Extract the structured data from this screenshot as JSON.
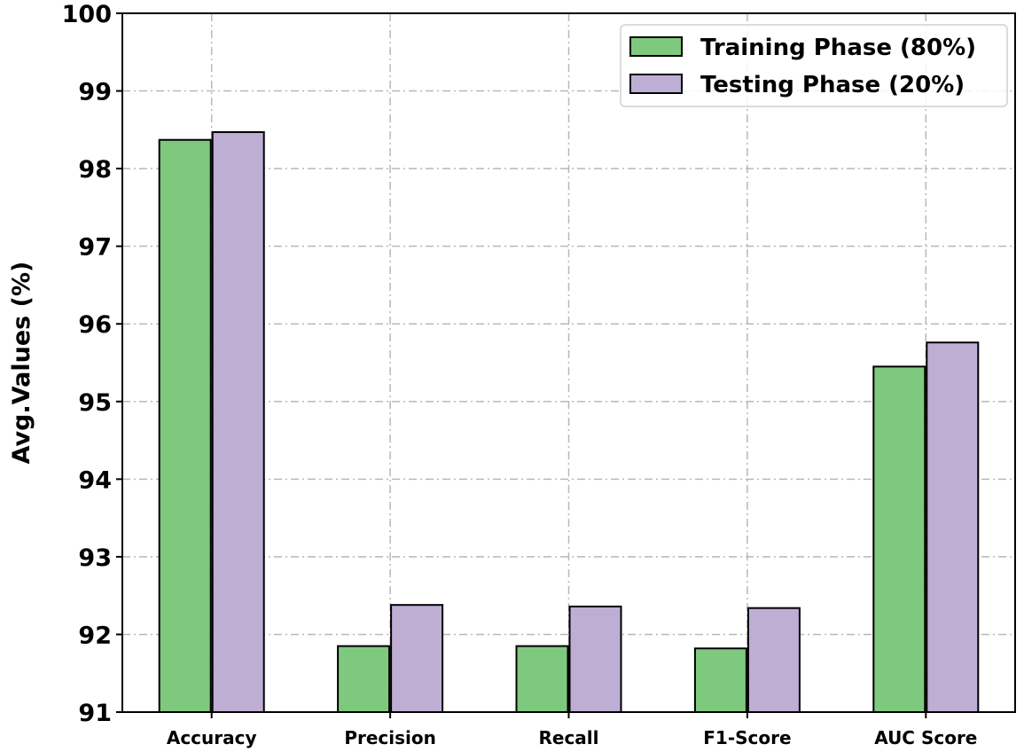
{
  "chart_data": {
    "type": "bar",
    "title": "",
    "xlabel": "",
    "ylabel": "Avg.Values (%)",
    "ylim": [
      91,
      100
    ],
    "yticks": [
      "91",
      "92",
      "93",
      "94",
      "95",
      "96",
      "97",
      "98",
      "99",
      "100"
    ],
    "categories": [
      "Accuracy",
      "Precision",
      "Recall",
      "F1-Score",
      "AUC Score"
    ],
    "grid": true,
    "legend_position": "top-right",
    "series": [
      {
        "name": "Training Phase (80%)",
        "color": "#7fc97f",
        "values": [
          98.37,
          91.85,
          91.85,
          91.82,
          95.45
        ]
      },
      {
        "name": "Testing Phase (20%)",
        "color": "#beaed4",
        "values": [
          98.47,
          92.38,
          92.36,
          92.34,
          95.76
        ]
      }
    ]
  }
}
